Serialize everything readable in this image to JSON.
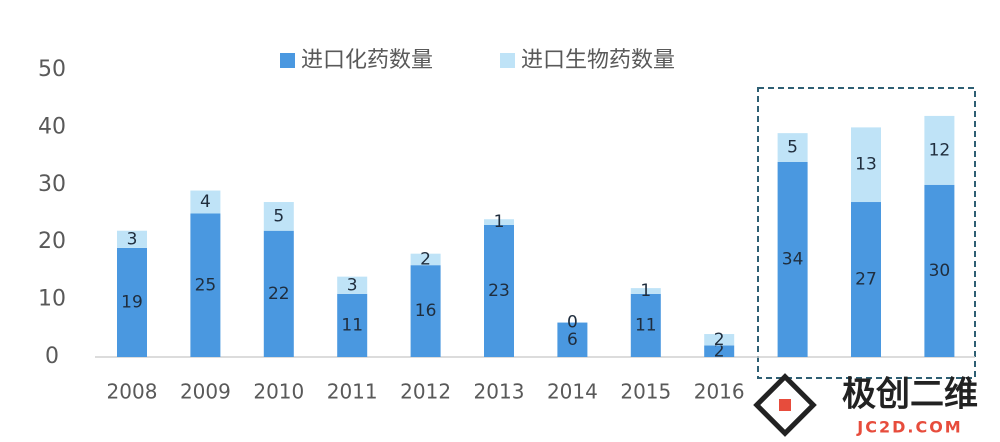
{
  "chart_data": {
    "type": "stacked_bar",
    "categories": [
      "2008",
      "2009",
      "2010",
      "2011",
      "2012",
      "2013",
      "2014",
      "2015",
      "2016",
      null,
      null,
      null
    ],
    "series": [
      {
        "name": "进口化药数量",
        "color": "#4a98e0",
        "values": [
          19,
          25,
          22,
          11,
          16,
          23,
          6,
          11,
          2,
          34,
          27,
          30
        ]
      },
      {
        "name": "进口生物药数量",
        "color": "#bfe3f7",
        "values": [
          3,
          4,
          5,
          3,
          2,
          1,
          0,
          1,
          2,
          5,
          13,
          12
        ]
      }
    ],
    "ylim": [
      0,
      50
    ],
    "yticks": [
      0,
      10,
      20,
      30,
      40,
      50
    ],
    "grid": false,
    "legend": "top"
  },
  "watermark": {
    "title": "极创二维",
    "url": "JC2D.COM"
  }
}
